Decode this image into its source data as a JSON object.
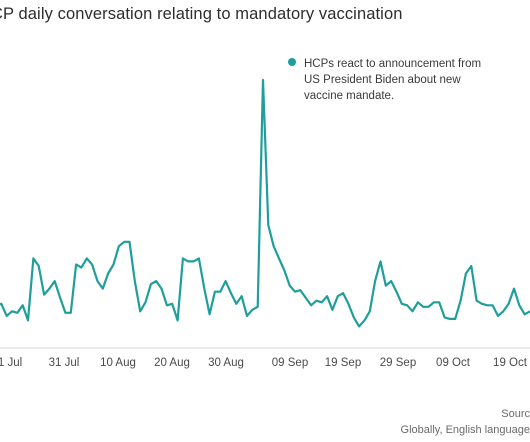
{
  "title": "CP daily conversation relating to mandatory vaccination",
  "source": {
    "line1": "Sourc",
    "line2": "Globally, English language"
  },
  "chart_data": {
    "type": "line",
    "title": "CP daily conversation relating to mandatory vaccination",
    "color": "#1f9e9b",
    "x_tick_labels": [
      "1 Jul",
      "31 Jul",
      "10 Aug",
      "20 Aug",
      "30 Aug",
      "09 Sep",
      "19 Sep",
      "29 Sep",
      "09 Oct",
      "19 Oct"
    ],
    "annotation": {
      "lines": [
        "HCPs react to announcement from",
        "US President Biden about new",
        "vaccine mandate."
      ],
      "point_index": 40
    },
    "series": [
      {
        "values": [
          19,
          20,
          12,
          15,
          14,
          19,
          9,
          50,
          45,
          26,
          30,
          35,
          24,
          14,
          14,
          46,
          44,
          50,
          46,
          35,
          30,
          40,
          46,
          58,
          61,
          61,
          35,
          15,
          21,
          33,
          35,
          30,
          19,
          20,
          9,
          50,
          48,
          48,
          50,
          30,
          13,
          28,
          28,
          35,
          27,
          20,
          25,
          12,
          16,
          18,
          168,
          72,
          58,
          50,
          42,
          32,
          28,
          29,
          24,
          19,
          22,
          21,
          25,
          16,
          25,
          27,
          20,
          11,
          5,
          9,
          15,
          35,
          48,
          32,
          35,
          28,
          20,
          19,
          15,
          21,
          18,
          18,
          21,
          21,
          11,
          10,
          10,
          22,
          40,
          45,
          22,
          20,
          19,
          19,
          12,
          15,
          20,
          30,
          19,
          13,
          15
        ]
      }
    ],
    "ylim": [
      0,
      180
    ],
    "grid": false,
    "legend": "none"
  }
}
